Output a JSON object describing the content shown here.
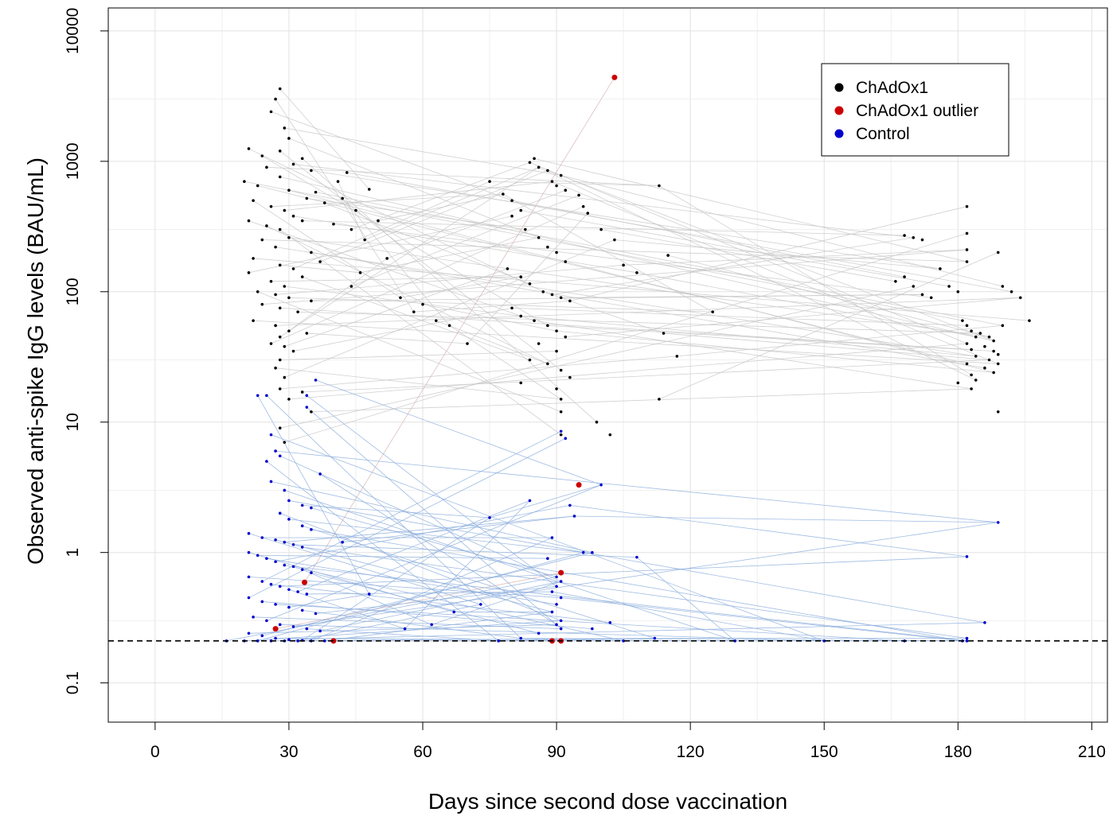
{
  "chart_data": {
    "type": "scatter",
    "title": "",
    "xlabel": "Days since second dose vaccination",
    "ylabel": "Observed anti-spike IgG levels (BAU/mL)",
    "x_scale": "linear",
    "y_scale": "log10",
    "xlim": [
      -10.5,
      213.5
    ],
    "ylim": [
      0.05,
      15000
    ],
    "x_ticks": [
      0,
      30,
      60,
      90,
      120,
      150,
      180,
      210
    ],
    "y_ticks": [
      0.1,
      1,
      10,
      100,
      1000,
      10000
    ],
    "y_tick_labels": [
      "0.1",
      "1",
      "10",
      "100",
      "1000",
      "10000"
    ],
    "grid": true,
    "reference_line": {
      "y": 0.21,
      "style": "dashed",
      "color": "#000000"
    },
    "legend": {
      "position": "top-right",
      "entries": [
        {
          "label": "ChAdOx1",
          "color": "#000000"
        },
        {
          "label": "ChAdOx1 outlier",
          "color": "#cc0000"
        },
        {
          "label": "Control",
          "color": "#0000cc"
        }
      ]
    },
    "series": [
      {
        "name": "ChAdOx1",
        "color": "#000000",
        "line_color": "#c8c8c8",
        "points": [
          [
            28,
            3600
          ],
          [
            27,
            3000
          ],
          [
            26,
            2400
          ],
          [
            29,
            1800
          ],
          [
            30,
            1500
          ],
          [
            21,
            1250
          ],
          [
            24,
            1100
          ],
          [
            28,
            1200
          ],
          [
            33,
            1050
          ],
          [
            25,
            900
          ],
          [
            31,
            950
          ],
          [
            35,
            850
          ],
          [
            20,
            700
          ],
          [
            23,
            650
          ],
          [
            28,
            760
          ],
          [
            30,
            600
          ],
          [
            36,
            580
          ],
          [
            22,
            500
          ],
          [
            26,
            450
          ],
          [
            29,
            420
          ],
          [
            34,
            520
          ],
          [
            38,
            480
          ],
          [
            21,
            350
          ],
          [
            25,
            320
          ],
          [
            28,
            300
          ],
          [
            31,
            380
          ],
          [
            33,
            350
          ],
          [
            40,
            330
          ],
          [
            24,
            250
          ],
          [
            27,
            220
          ],
          [
            30,
            260
          ],
          [
            35,
            200
          ],
          [
            22,
            180
          ],
          [
            28,
            160
          ],
          [
            31,
            150
          ],
          [
            37,
            170
          ],
          [
            21,
            140
          ],
          [
            26,
            120
          ],
          [
            29,
            110
          ],
          [
            33,
            130
          ],
          [
            23,
            100
          ],
          [
            27,
            95
          ],
          [
            30,
            90
          ],
          [
            35,
            85
          ],
          [
            24,
            80
          ],
          [
            28,
            75
          ],
          [
            32,
            70
          ],
          [
            22,
            60
          ],
          [
            27,
            55
          ],
          [
            30,
            50
          ],
          [
            34,
            48
          ],
          [
            28,
            45
          ],
          [
            26,
            40
          ],
          [
            29,
            38
          ],
          [
            31,
            35
          ],
          [
            28,
            30
          ],
          [
            27,
            26
          ],
          [
            29,
            22
          ],
          [
            28,
            18
          ],
          [
            28,
            9
          ],
          [
            29,
            7
          ],
          [
            30,
            15
          ],
          [
            35,
            12
          ],
          [
            33,
            17
          ],
          [
            43,
            820
          ],
          [
            41,
            700
          ],
          [
            48,
            610
          ],
          [
            42,
            520
          ],
          [
            45,
            420
          ],
          [
            44,
            300
          ],
          [
            50,
            350
          ],
          [
            47,
            250
          ],
          [
            52,
            180
          ],
          [
            46,
            140
          ],
          [
            44,
            110
          ],
          [
            55,
            90
          ],
          [
            58,
            70
          ],
          [
            60,
            80
          ],
          [
            63,
            60
          ],
          [
            66,
            55
          ],
          [
            70,
            40
          ],
          [
            75,
            700
          ],
          [
            78,
            560
          ],
          [
            80,
            500
          ],
          [
            82,
            420
          ],
          [
            85,
            1050
          ],
          [
            84,
            980
          ],
          [
            86,
            900
          ],
          [
            88,
            850
          ],
          [
            89,
            700
          ],
          [
            91,
            780
          ],
          [
            90,
            650
          ],
          [
            92,
            600
          ],
          [
            95,
            550
          ],
          [
            96,
            450
          ],
          [
            80,
            380
          ],
          [
            83,
            300
          ],
          [
            86,
            260
          ],
          [
            88,
            220
          ],
          [
            90,
            200
          ],
          [
            92,
            170
          ],
          [
            79,
            150
          ],
          [
            82,
            130
          ],
          [
            84,
            115
          ],
          [
            87,
            100
          ],
          [
            89,
            95
          ],
          [
            91,
            90
          ],
          [
            93,
            85
          ],
          [
            80,
            75
          ],
          [
            82,
            65
          ],
          [
            85,
            60
          ],
          [
            88,
            55
          ],
          [
            90,
            50
          ],
          [
            92,
            45
          ],
          [
            86,
            40
          ],
          [
            90,
            35
          ],
          [
            84,
            30
          ],
          [
            88,
            28
          ],
          [
            91,
            25
          ],
          [
            93,
            22
          ],
          [
            82,
            20
          ],
          [
            90,
            18
          ],
          [
            91,
            15
          ],
          [
            91,
            12
          ],
          [
            91,
            8
          ],
          [
            99,
            10
          ],
          [
            102,
            8
          ],
          [
            97,
            400
          ],
          [
            100,
            300
          ],
          [
            103,
            250
          ],
          [
            105,
            160
          ],
          [
            108,
            140
          ],
          [
            113,
            650
          ],
          [
            115,
            190
          ],
          [
            114,
            48
          ],
          [
            113,
            15
          ],
          [
            117,
            32
          ],
          [
            125,
            70
          ],
          [
            168,
            270
          ],
          [
            170,
            260
          ],
          [
            172,
            250
          ],
          [
            166,
            120
          ],
          [
            168,
            130
          ],
          [
            170,
            110
          ],
          [
            172,
            95
          ],
          [
            174,
            90
          ],
          [
            176,
            150
          ],
          [
            178,
            110
          ],
          [
            180,
            100
          ],
          [
            182,
            450
          ],
          [
            182,
            280
          ],
          [
            182,
            210
          ],
          [
            182,
            170
          ],
          [
            181,
            60
          ],
          [
            182,
            55
          ],
          [
            183,
            50
          ],
          [
            184,
            45
          ],
          [
            182,
            40
          ],
          [
            183,
            36
          ],
          [
            184,
            32
          ],
          [
            182,
            28
          ],
          [
            183,
            23
          ],
          [
            184,
            21
          ],
          [
            180,
            20
          ],
          [
            183,
            18
          ],
          [
            185,
            48
          ],
          [
            187,
            45
          ],
          [
            188,
            42
          ],
          [
            186,
            38
          ],
          [
            188,
            35
          ],
          [
            189,
            33
          ],
          [
            187,
            30
          ],
          [
            189,
            28
          ],
          [
            186,
            26
          ],
          [
            188,
            24
          ],
          [
            189,
            12
          ],
          [
            189,
            200
          ],
          [
            190,
            110
          ],
          [
            192,
            100
          ],
          [
            194,
            90
          ],
          [
            196,
            60
          ],
          [
            190,
            55
          ]
        ]
      },
      {
        "name": "ChAdOx1 outlier",
        "color": "#cc0000",
        "line_color": "#d9b3b3",
        "points": [
          [
            103,
            4400
          ],
          [
            95,
            3.3
          ],
          [
            91,
            0.7
          ],
          [
            33.5,
            0.59
          ],
          [
            27,
            0.26
          ],
          [
            40,
            0.21
          ],
          [
            89,
            0.21
          ],
          [
            91,
            0.21
          ]
        ]
      },
      {
        "name": "Control",
        "color": "#0000cc",
        "line_color": "#8fb0de",
        "points": [
          [
            23,
            16
          ],
          [
            25,
            16
          ],
          [
            34,
            16
          ],
          [
            34,
            13
          ],
          [
            36,
            21
          ],
          [
            26,
            8
          ],
          [
            27,
            6
          ],
          [
            25,
            5
          ],
          [
            28,
            5.5
          ],
          [
            37,
            4
          ],
          [
            26,
            3.5
          ],
          [
            29,
            3.0
          ],
          [
            30,
            2.5
          ],
          [
            33,
            2.3
          ],
          [
            35,
            2.2
          ],
          [
            28,
            2.0
          ],
          [
            30,
            1.8
          ],
          [
            33,
            1.6
          ],
          [
            35,
            1.5
          ],
          [
            21,
            1.4
          ],
          [
            24,
            1.3
          ],
          [
            27,
            1.25
          ],
          [
            29,
            1.2
          ],
          [
            31,
            1.15
          ],
          [
            33,
            1.1
          ],
          [
            21,
            1.0
          ],
          [
            23,
            0.95
          ],
          [
            25,
            0.9
          ],
          [
            27,
            0.85
          ],
          [
            29,
            0.8
          ],
          [
            31,
            0.78
          ],
          [
            33,
            0.74
          ],
          [
            35,
            0.7
          ],
          [
            21,
            0.65
          ],
          [
            24,
            0.6
          ],
          [
            26,
            0.57
          ],
          [
            28,
            0.55
          ],
          [
            30,
            0.52
          ],
          [
            32,
            0.5
          ],
          [
            34,
            0.48
          ],
          [
            21,
            0.45
          ],
          [
            24,
            0.42
          ],
          [
            27,
            0.4
          ],
          [
            30,
            0.38
          ],
          [
            33,
            0.36
          ],
          [
            36,
            0.34
          ],
          [
            22,
            0.32
          ],
          [
            25,
            0.3
          ],
          [
            28,
            0.28
          ],
          [
            31,
            0.27
          ],
          [
            34,
            0.26
          ],
          [
            37,
            0.25
          ],
          [
            21,
            0.24
          ],
          [
            24,
            0.23
          ],
          [
            27,
            0.22
          ],
          [
            30,
            0.215
          ],
          [
            33,
            0.212
          ],
          [
            16,
            0.21
          ],
          [
            20,
            0.21
          ],
          [
            23,
            0.21
          ],
          [
            26,
            0.21
          ],
          [
            29,
            0.21
          ],
          [
            32,
            0.21
          ],
          [
            35,
            0.21
          ],
          [
            38,
            0.21
          ],
          [
            42,
            1.2
          ],
          [
            48,
            0.48
          ],
          [
            56,
            0.26
          ],
          [
            62,
            0.28
          ],
          [
            67,
            0.35
          ],
          [
            73,
            0.4
          ],
          [
            75,
            1.85
          ],
          [
            77,
            0.21
          ],
          [
            82,
            0.22
          ],
          [
            84,
            2.5
          ],
          [
            86,
            0.24
          ],
          [
            88,
            0.9
          ],
          [
            89,
            1.3
          ],
          [
            90,
            0.65
          ],
          [
            91,
            0.6
          ],
          [
            90,
            0.55
          ],
          [
            89,
            0.5
          ],
          [
            91,
            0.45
          ],
          [
            90,
            0.4
          ],
          [
            89,
            0.35
          ],
          [
            91,
            0.3
          ],
          [
            90,
            0.28
          ],
          [
            91,
            0.26
          ],
          [
            92,
            7.5
          ],
          [
            91,
            8.5
          ],
          [
            93,
            2.3
          ],
          [
            94,
            1.9
          ],
          [
            96,
            1.0
          ],
          [
            98,
            1.0
          ],
          [
            100,
            3.3
          ],
          [
            98,
            0.26
          ],
          [
            102,
            0.29
          ],
          [
            105,
            0.21
          ],
          [
            108,
            0.92
          ],
          [
            112,
            0.22
          ],
          [
            130,
            0.21
          ],
          [
            150,
            0.21
          ],
          [
            168,
            0.21
          ],
          [
            182,
            0.93
          ],
          [
            182,
            0.21
          ],
          [
            182,
            0.22
          ],
          [
            181,
            0.21
          ],
          [
            186,
            0.29
          ],
          [
            189,
            1.7
          ]
        ]
      }
    ]
  }
}
